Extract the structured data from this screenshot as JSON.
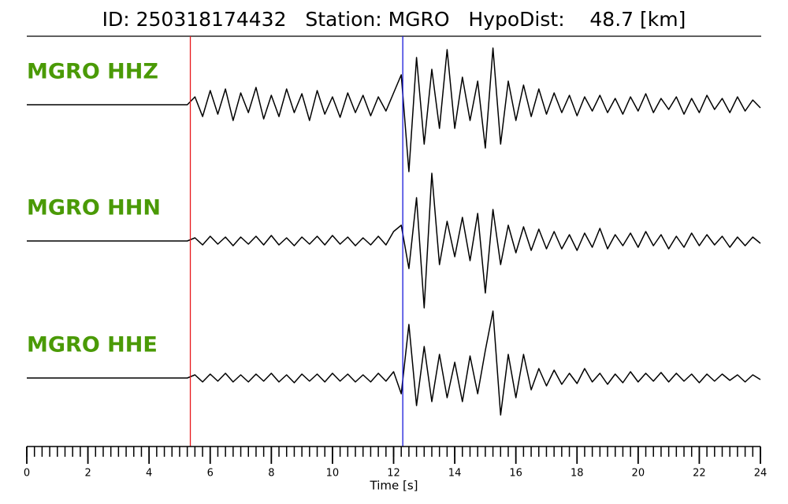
{
  "chart_data": {
    "type": "seismogram",
    "title": "ID: 250318174432   Station: MGRO   HypoDist:    48.7 [km]",
    "xlabel": "Time [s]",
    "xlim": [
      0,
      24
    ],
    "xticks": [
      0,
      2,
      4,
      6,
      8,
      10,
      12,
      14,
      16,
      18,
      20,
      22,
      24
    ],
    "xminor_step": 0.25,
    "x": [
      0,
      0.25,
      0.5,
      0.75,
      1,
      1.25,
      1.5,
      1.75,
      2,
      2.25,
      2.5,
      2.75,
      3,
      3.25,
      3.5,
      3.75,
      4,
      4.25,
      4.5,
      4.75,
      5,
      5.25,
      5.5,
      5.75,
      6,
      6.25,
      6.5,
      6.75,
      7,
      7.25,
      7.5,
      7.75,
      8,
      8.25,
      8.5,
      8.75,
      9,
      9.25,
      9.5,
      9.75,
      10,
      10.25,
      10.5,
      10.75,
      11,
      11.25,
      11.5,
      11.75,
      12,
      12.25,
      12.5,
      12.75,
      13,
      13.25,
      13.5,
      13.75,
      14,
      14.25,
      14.5,
      14.75,
      15,
      15.25,
      15.5,
      15.75,
      16,
      16.25,
      16.5,
      16.75,
      17,
      17.25,
      17.5,
      17.75,
      18,
      18.25,
      18.5,
      18.75,
      19,
      19.25,
      19.5,
      19.75,
      20,
      20.25,
      20.5,
      20.75,
      21,
      21.25,
      21.5,
      21.75,
      22,
      22.25,
      22.5,
      22.75,
      23,
      23.25,
      23.5,
      23.75,
      24
    ],
    "markers": [
      {
        "x": 5.35,
        "color": "#e8171b"
      },
      {
        "x": 12.3,
        "color": "#1a1adb"
      }
    ],
    "series": [
      {
        "name": "MGRO HHZ",
        "color": "#000000",
        "label_color": "#4a9a06",
        "values": [
          0,
          0,
          0,
          0,
          0,
          0,
          0,
          0,
          0,
          0,
          0,
          0,
          0,
          0,
          0,
          0,
          0,
          0,
          0,
          0,
          0,
          0,
          0.1,
          -0.15,
          0.18,
          -0.12,
          0.2,
          -0.2,
          0.15,
          -0.1,
          0.22,
          -0.18,
          0.12,
          -0.15,
          0.2,
          -0.1,
          0.14,
          -0.2,
          0.18,
          -0.12,
          0.1,
          -0.16,
          0.15,
          -0.1,
          0.12,
          -0.14,
          0.1,
          -0.08,
          0.15,
          0.38,
          -0.85,
          0.6,
          -0.5,
          0.45,
          -0.3,
          0.7,
          -0.3,
          0.35,
          -0.2,
          0.3,
          -0.55,
          0.72,
          -0.5,
          0.3,
          -0.2,
          0.25,
          -0.15,
          0.2,
          -0.12,
          0.15,
          -0.1,
          0.12,
          -0.14,
          0.1,
          -0.08,
          0.12,
          -0.1,
          0.08,
          -0.12,
          0.1,
          -0.08,
          0.14,
          -0.1,
          0.08,
          -0.06,
          0.1,
          -0.12,
          0.08,
          -0.1,
          0.12,
          -0.06,
          0.08,
          -0.1,
          0.1,
          -0.08,
          0.06,
          -0.04
        ]
      },
      {
        "name": "MGRO HHN",
        "color": "#000000",
        "label_color": "#4a9a06",
        "values": [
          0,
          0,
          0,
          0,
          0,
          0,
          0,
          0,
          0,
          0,
          0,
          0,
          0,
          0,
          0,
          0,
          0,
          0,
          0,
          0,
          0,
          0,
          0.04,
          -0.05,
          0.06,
          -0.04,
          0.05,
          -0.06,
          0.05,
          -0.04,
          0.06,
          -0.05,
          0.07,
          -0.05,
          0.04,
          -0.06,
          0.05,
          -0.04,
          0.06,
          -0.05,
          0.07,
          -0.04,
          0.05,
          -0.06,
          0.04,
          -0.05,
          0.06,
          -0.05,
          0.12,
          0.2,
          -0.35,
          0.55,
          -0.85,
          0.86,
          -0.3,
          0.25,
          -0.2,
          0.3,
          -0.25,
          0.35,
          -0.66,
          0.4,
          -0.3,
          0.2,
          -0.15,
          0.18,
          -0.12,
          0.15,
          -0.1,
          0.12,
          -0.1,
          0.08,
          -0.12,
          0.1,
          -0.08,
          0.16,
          -0.1,
          0.08,
          -0.06,
          0.1,
          -0.08,
          0.12,
          -0.06,
          0.08,
          -0.1,
          0.06,
          -0.08,
          0.1,
          -0.06,
          0.08,
          -0.05,
          0.06,
          -0.08,
          0.05,
          -0.06,
          0.05,
          -0.03
        ]
      },
      {
        "name": "MGRO HHE",
        "color": "#000000",
        "label_color": "#4a9a06",
        "values": [
          0,
          0,
          0,
          0,
          0,
          0,
          0,
          0,
          0,
          0,
          0,
          0,
          0,
          0,
          0,
          0,
          0,
          0,
          0,
          0,
          0,
          0,
          0.04,
          -0.05,
          0.05,
          -0.04,
          0.06,
          -0.05,
          0.04,
          -0.05,
          0.05,
          -0.04,
          0.06,
          -0.05,
          0.04,
          -0.06,
          0.05,
          -0.04,
          0.05,
          -0.05,
          0.06,
          -0.04,
          0.05,
          -0.05,
          0.04,
          -0.05,
          0.06,
          -0.04,
          0.08,
          -0.2,
          0.68,
          -0.35,
          0.4,
          -0.3,
          0.3,
          -0.25,
          0.2,
          -0.3,
          0.28,
          -0.2,
          0.35,
          0.85,
          -0.47,
          0.3,
          -0.25,
          0.3,
          -0.15,
          0.12,
          -0.1,
          0.1,
          -0.08,
          0.06,
          -0.07,
          0.12,
          -0.05,
          0.06,
          -0.08,
          0.05,
          -0.06,
          0.08,
          -0.05,
          0.06,
          -0.04,
          0.07,
          -0.05,
          0.06,
          -0.04,
          0.05,
          -0.06,
          0.05,
          -0.04,
          0.05,
          -0.03,
          0.04,
          -0.05,
          0.04,
          -0.02
        ]
      }
    ]
  }
}
